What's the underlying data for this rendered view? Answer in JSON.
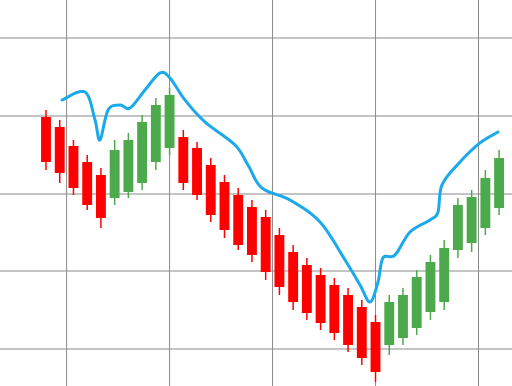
{
  "chart_data": {
    "type": "candlestick",
    "up_color": "#4caa4c",
    "down_color": "#ff0000",
    "grid": true,
    "xlim": [
      -3.35,
      33.94
    ],
    "xticks": [
      1.5,
      9,
      16.5,
      24,
      31.5
    ],
    "ylim": [
      0,
      386
    ],
    "yticks": [
      37,
      115,
      192,
      270,
      348
    ],
    "x": [
      0,
      1,
      2,
      3,
      4,
      5,
      6,
      7,
      8,
      9,
      10,
      11,
      12,
      13,
      14,
      15,
      16,
      17,
      18,
      19,
      20,
      21,
      22,
      23,
      24,
      25,
      26,
      27,
      28,
      29,
      30,
      31,
      32,
      33
    ],
    "open": [
      269,
      259,
      240,
      224,
      211,
      188,
      194,
      203,
      224,
      238,
      249,
      238,
      221,
      204,
      191,
      179,
      169,
      151,
      134,
      121,
      111,
      101,
      91,
      79,
      64,
      41,
      48,
      58,
      74,
      84,
      136,
      143,
      158,
      178
    ],
    "high": [
      276,
      266,
      246,
      231,
      218,
      246,
      253,
      271,
      288,
      298,
      256,
      244,
      228,
      211,
      198,
      186,
      176,
      158,
      141,
      128,
      118,
      108,
      98,
      86,
      71,
      91,
      98,
      116,
      131,
      146,
      188,
      196,
      216,
      236
    ],
    "low": [
      216,
      203,
      191,
      176,
      158,
      181,
      188,
      196,
      216,
      231,
      196,
      186,
      164,
      148,
      136,
      124,
      106,
      91,
      76,
      66,
      56,
      46,
      34,
      21,
      4,
      31,
      41,
      51,
      66,
      76,
      128,
      134,
      151,
      171
    ],
    "close": [
      224,
      213,
      198,
      181,
      168,
      236,
      246,
      264,
      281,
      291,
      203,
      191,
      171,
      156,
      141,
      131,
      114,
      99,
      84,
      73,
      63,
      53,
      41,
      28,
      14,
      84,
      91,
      109,
      124,
      138,
      181,
      189,
      208,
      228
    ],
    "overlay": {
      "type": "line",
      "color": "#1aa9ec",
      "x": [
        1.17,
        2.84,
        3.57,
        3.93,
        4.52,
        5.39,
        6.12,
        7.21,
        8.3,
        9.03,
        10.12,
        11.58,
        13.77,
        14.71,
        15.73,
        17.77,
        19.96,
        21.78,
        22.87,
        23.6,
        24.18,
        24.54,
        25.42,
        26.51,
        27.97,
        28.55,
        28.84,
        30.15,
        31.6,
        32.92
      ],
      "values": [
        286,
        294,
        266,
        246,
        276,
        281,
        278,
        296,
        313,
        308,
        286,
        264,
        241,
        221,
        198,
        186,
        164,
        126,
        101,
        84,
        104,
        128,
        131,
        154,
        166,
        174,
        201,
        224,
        243,
        254
      ]
    }
  }
}
